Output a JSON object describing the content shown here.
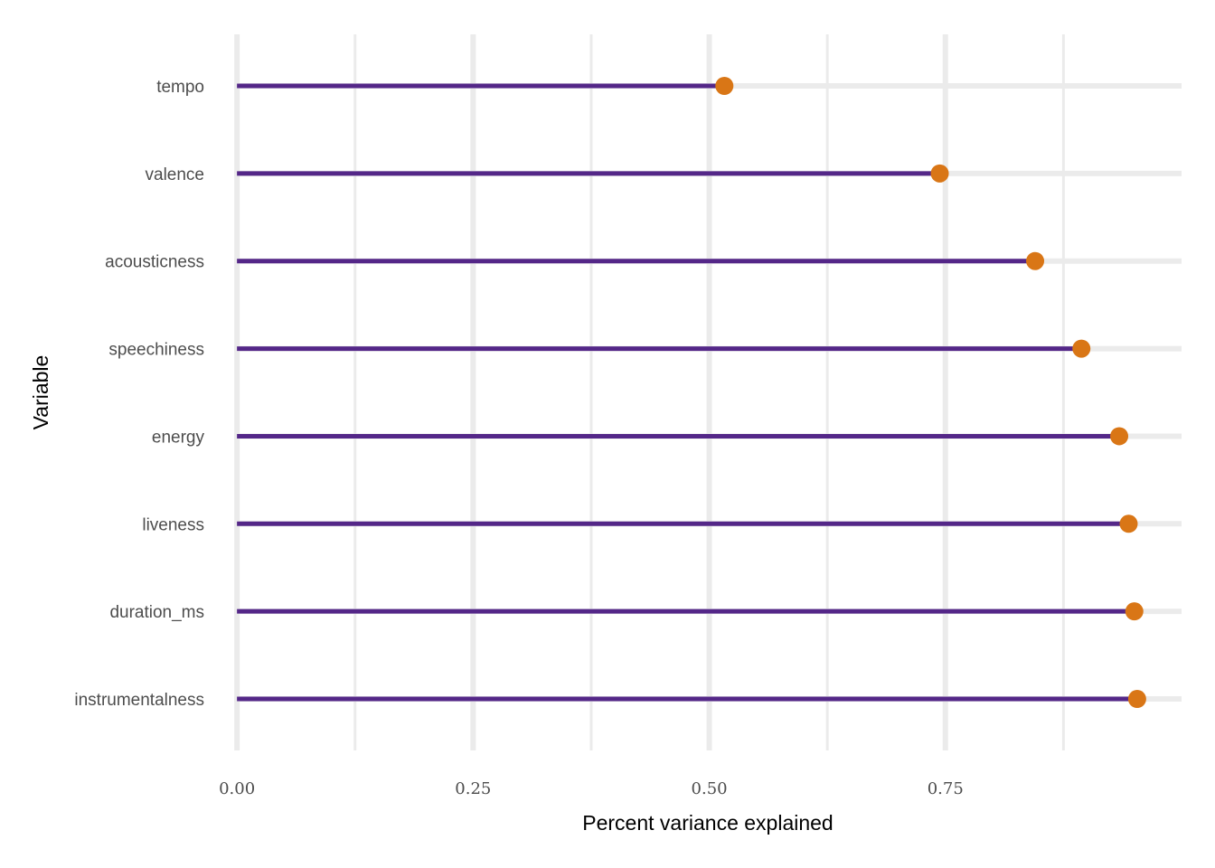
{
  "chart_data": {
    "type": "lollipop",
    "xlabel": "Percent variance explained",
    "ylabel": "Variable",
    "xlim": [
      -0.003,
      1.0
    ],
    "x_ticks": [
      {
        "value": 0.0,
        "label": "0.00"
      },
      {
        "value": 0.25,
        "label": "0.25"
      },
      {
        "value": 0.5,
        "label": "0.50"
      },
      {
        "value": 0.75,
        "label": "0.75"
      }
    ],
    "x_minor_ticks": [
      0.125,
      0.375,
      0.625,
      0.875
    ],
    "grid": true,
    "categories": [
      "tempo",
      "valence",
      "acousticness",
      "speechiness",
      "energy",
      "liveness",
      "duration_ms",
      "instrumentalness"
    ],
    "values": [
      0.516,
      0.744,
      0.845,
      0.894,
      0.934,
      0.944,
      0.95,
      0.953
    ],
    "colors": {
      "segment": "#542788",
      "point": "#d97616",
      "grid": "#ebebeb"
    }
  }
}
